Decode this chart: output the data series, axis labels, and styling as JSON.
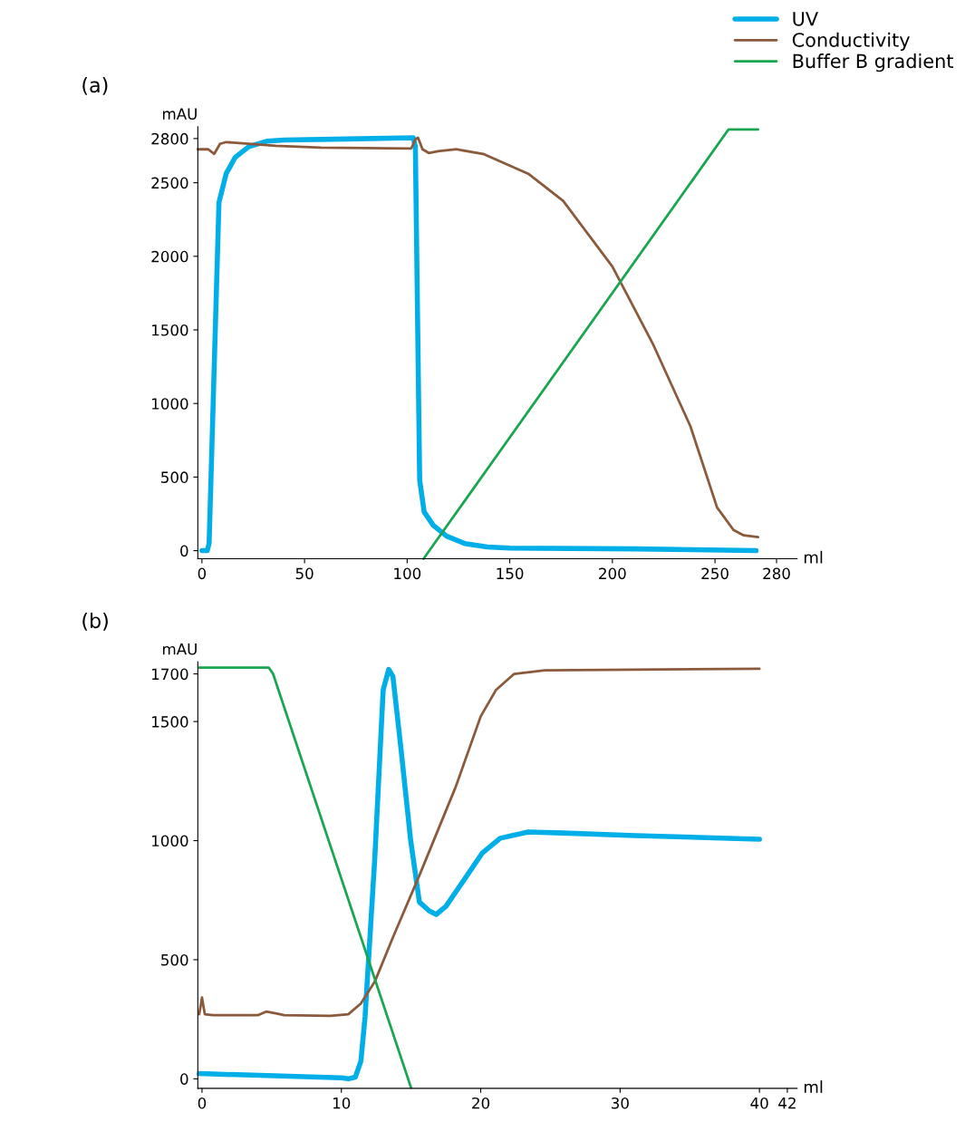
{
  "chart_data": [
    {
      "type": "line",
      "annotations": [
        "(a)"
      ],
      "xlabel": "ml",
      "ylabel": "mAU",
      "xlim": [
        -2,
        290
      ],
      "ylim": [
        -55,
        2880
      ],
      "xticks": [
        0,
        50,
        100,
        150,
        200,
        250,
        280
      ],
      "yticks": [
        0,
        500,
        1000,
        1500,
        2000,
        2500,
        2800
      ],
      "grid": false,
      "legend": "top right",
      "series": [
        {
          "name": "UV",
          "color": "#00aee8",
          "x": [
            0,
            2.6,
            3.5,
            8.3,
            11.8,
            16.2,
            22.8,
            31.6,
            40,
            70,
            103,
            104,
            106.1,
            108.3,
            112.7,
            119.3,
            128,
            139,
            150,
            211,
            270
          ],
          "values": [
            0,
            0,
            50,
            2365,
            2561,
            2672,
            2745,
            2782,
            2790,
            2797,
            2805,
            2745,
            478,
            263,
            172,
            98,
            49,
            25,
            18,
            12,
            0
          ]
        },
        {
          "name": "Conductivity",
          "color": "#8b5a3c",
          "x": [
            -2,
            3,
            6,
            8.8,
            11.8,
            36,
            58,
            102,
            104,
            105.3,
            107.5,
            110.5,
            115,
            124,
            137,
            159,
            176,
            200,
            220,
            238,
            251,
            259,
            264,
            271
          ],
          "values": [
            2727,
            2727,
            2696,
            2764,
            2776,
            2751,
            2739,
            2733,
            2794,
            2806,
            2727,
            2702,
            2714,
            2727,
            2696,
            2561,
            2377,
            1930,
            1397,
            846,
            294,
            141,
            104,
            92
          ]
        },
        {
          "name": "Buffer B gradient",
          "color": "#1aa551",
          "x": [
            108,
            256.6,
            271
          ],
          "values": [
            -55,
            2862,
            2862
          ]
        }
      ]
    },
    {
      "type": "line",
      "annotations": [
        "(b)"
      ],
      "xlabel": "ml",
      "ylabel": "mAU",
      "xlim": [
        -0.3,
        42.7
      ],
      "ylim": [
        -40,
        1750
      ],
      "xticks": [
        0,
        10,
        20,
        30,
        40,
        42
      ],
      "yticks": [
        0,
        500,
        1000,
        1500,
        1700
      ],
      "grid": false,
      "legend": false,
      "series": [
        {
          "color": "#00aee8",
          "x": [
            -0.2,
            10,
            10.5,
            11,
            11.4,
            11.7,
            12.4,
            13,
            13.4,
            13.7,
            14.3,
            14.97,
            15.6,
            16.3,
            16.8,
            17.5,
            18.8,
            20.1,
            21.4,
            23.4,
            25.9,
            31.1,
            40
          ],
          "values": [
            22,
            4,
            0,
            7,
            74,
            260,
            928,
            1633,
            1719,
            1689,
            1373,
            1002,
            742,
            705,
            690,
            724,
            835,
            947,
            1010,
            1036,
            1032,
            1021,
            1006
          ]
        },
        {
          "color": "#8b5a3c",
          "x": [
            -0.2,
            0,
            0.2,
            0.8,
            4,
            4.6,
            5.3,
            5.9,
            9.2,
            10.5,
            11.4,
            12.4,
            13.7,
            15.6,
            18.2,
            20,
            21.1,
            22.4,
            24.6,
            40
          ],
          "values": [
            271,
            341,
            271,
            267,
            267,
            282,
            275,
            267,
            264,
            271,
            316,
            408,
            594,
            854,
            1225,
            1522,
            1633,
            1700,
            1715,
            1722
          ]
        },
        {
          "color": "#1aa551",
          "x": [
            -0.2,
            4.8,
            5.1,
            15.0
          ],
          "values": [
            1726,
            1726,
            1700,
            -37
          ]
        }
      ]
    }
  ]
}
